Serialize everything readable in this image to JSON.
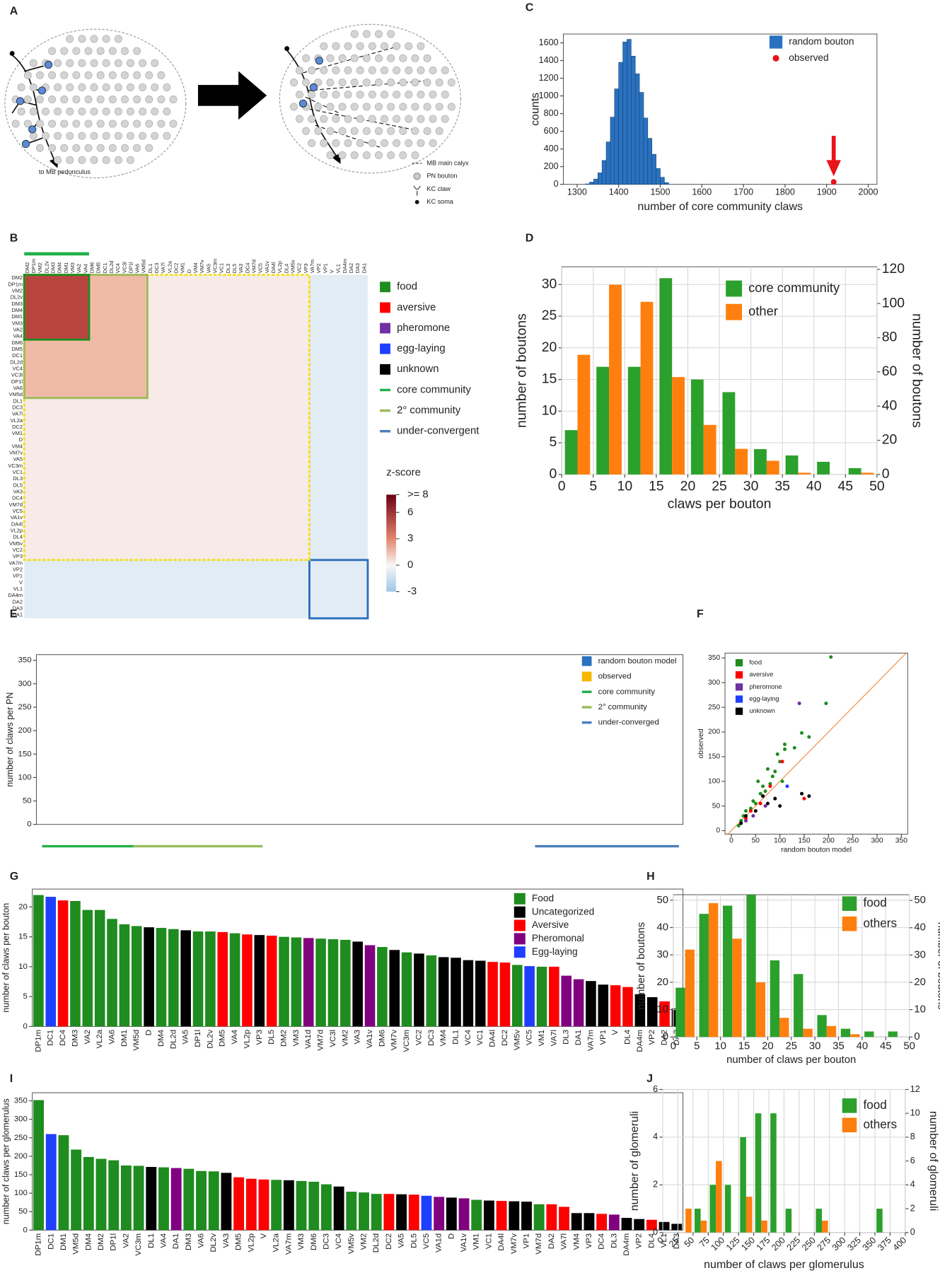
{
  "diagram": {
    "panel": "A",
    "note": "to MB pedunculus",
    "legend": [
      "MB main calyx",
      "PN bouton",
      "KC claw",
      "KC soma"
    ]
  },
  "chart_data": [
    {
      "panel": "B",
      "type": "heatmap",
      "labels": [
        "DM2",
        "DP1m",
        "VM2",
        "DL2v",
        "DM3",
        "DM4",
        "DM1",
        "VM3",
        "VA2",
        "VA4",
        "DM6",
        "DM5",
        "DC1",
        "DL2d",
        "VC4",
        "VC3l",
        "DP1l",
        "VA6",
        "VM5d",
        "DL1",
        "DC3",
        "VA7l",
        "VL2a",
        "DC2",
        "VM1",
        "D",
        "VM4",
        "VM7v",
        "VA5",
        "VC3m",
        "VC1",
        "DL3",
        "DL5",
        "VA3",
        "DC4",
        "VM7d",
        "VC5",
        "VA1v",
        "DA4l",
        "VL2p",
        "DL4",
        "VM5v",
        "VC2",
        "VP3",
        "VA7m",
        "VP2",
        "VP1",
        "V",
        "VL1",
        "DA4m",
        "DA2",
        "DA3",
        "DA1"
      ],
      "legend": [
        {
          "name": "food",
          "color": "#1e8c1e"
        },
        {
          "name": "aversive",
          "color": "#ff0000"
        },
        {
          "name": "pheromone",
          "color": "#7030a0"
        },
        {
          "name": "egg-laying",
          "color": "#1f3fff"
        },
        {
          "name": "unknown",
          "color": "#000000"
        },
        {
          "name": "core community",
          "color": "#22b04a",
          "marker": "line"
        },
        {
          "name": "2° community",
          "color": "#9bbb59",
          "marker": "line"
        },
        {
          "name": "under-convergent",
          "color": "#4a7ebb",
          "marker": "line"
        }
      ],
      "colorbar": {
        "title": "z-score",
        "lim": [
          -3,
          8
        ],
        "ticks": [
          {
            "value": 8,
            "label": ">= 8"
          },
          6,
          3,
          0,
          -3
        ]
      }
    },
    {
      "panel": "C",
      "type": "histogram",
      "xlabel": "number of core community claws",
      "ylabel": "counts",
      "bins": [
        1320,
        1330,
        1340,
        1350,
        1360,
        1370,
        1380,
        1390,
        1400,
        1410,
        1420,
        1430,
        1440,
        1450,
        1460,
        1470,
        1480,
        1490,
        1500,
        1510,
        1520
      ],
      "series": [
        {
          "name": "random bouton",
          "color": "#2a72c0",
          "values": [
            5,
            25,
            60,
            130,
            270,
            480,
            760,
            1080,
            1380,
            1610,
            1640,
            1450,
            1250,
            1040,
            750,
            520,
            340,
            180,
            80,
            20
          ]
        },
        {
          "name": "observed",
          "color": "#e8141c",
          "x": [
            1917
          ],
          "values": [
            0
          ]
        }
      ],
      "xlim": [
        1267,
        2021
      ],
      "xticks": [
        1300,
        1400,
        1500,
        1600,
        1700,
        1800,
        1900,
        2000
      ],
      "ylim": [
        0,
        1700
      ],
      "yticks": [
        0,
        200,
        400,
        600,
        800,
        1000,
        1200,
        1400,
        1600
      ]
    },
    {
      "panel": "D",
      "type": "histogram",
      "xlabel": "claws per bouton",
      "ylabel": "number of boutons",
      "y2label": "number of boutons",
      "grid": true,
      "bins": [
        0,
        5,
        10,
        15,
        20,
        25,
        30,
        35,
        40,
        45,
        50
      ],
      "series": [
        {
          "name": "core community",
          "color": "#2ca02c",
          "values": [
            7,
            17,
            17,
            31,
            15,
            13,
            4,
            3,
            2,
            1
          ]
        },
        {
          "name": "other",
          "color": "#ff7f0e",
          "axis": "y2",
          "values": [
            70,
            111,
            101,
            57,
            29,
            15,
            8,
            1,
            0,
            1
          ]
        }
      ],
      "xlim": [
        0,
        50
      ],
      "xticks": [
        0,
        5,
        10,
        15,
        20,
        25,
        30,
        35,
        40,
        45,
        50
      ],
      "ylim": [
        0,
        32.8
      ],
      "yticks": [
        0,
        5,
        10,
        15,
        20,
        25,
        30
      ],
      "y2lim": [
        0,
        121.5
      ],
      "y2ticks": [
        0,
        20,
        40,
        60,
        80,
        100,
        120
      ]
    },
    {
      "panel": "E",
      "type": "bar",
      "ylabel": "number of claws per PN",
      "ylim": [
        0,
        362
      ],
      "yticks": [
        0,
        50,
        100,
        150,
        200,
        250,
        300,
        350
      ],
      "legend": [
        {
          "name": "random bouton model",
          "color": "#2a72c0"
        },
        {
          "name": "observed",
          "color": "#f5b800"
        },
        {
          "name": "core community",
          "color": "#22b04a",
          "marker": "line"
        },
        {
          "name": "2° community",
          "color": "#9bbb59",
          "marker": "line"
        },
        {
          "name": "under-converged",
          "color": "#4a7ebb",
          "marker": "line"
        }
      ]
    },
    {
      "panel": "F",
      "type": "scatter",
      "xlabel": "random bouton model",
      "ylabel": "observed",
      "xlim": [
        -13,
        363
      ],
      "ylim": [
        -7,
        360
      ],
      "xticks": [
        0,
        50,
        100,
        150,
        200,
        250,
        300,
        350
      ],
      "yticks": [
        0,
        50,
        100,
        150,
        200,
        250,
        300,
        350
      ],
      "series": [
        {
          "name": "food",
          "color": "#1e8c1e",
          "x": [
            205,
            195,
            145,
            160,
            110,
            110,
            130,
            95,
            100,
            75,
            90,
            80,
            70,
            60,
            45,
            50,
            30,
            25,
            40,
            20,
            15,
            55,
            85,
            105,
            65
          ],
          "values": [
            352,
            258,
            198,
            190,
            175,
            165,
            168,
            155,
            140,
            125,
            120,
            95,
            80,
            75,
            60,
            55,
            40,
            30,
            45,
            20,
            10,
            100,
            110,
            100,
            90
          ]
        },
        {
          "name": "aversive",
          "color": "#ff0000",
          "x": [
            105,
            150,
            80,
            40,
            60,
            30
          ],
          "values": [
            140,
            65,
            90,
            40,
            55,
            25
          ]
        },
        {
          "name": "pheromone",
          "color": "#7030a0",
          "x": [
            140,
            45,
            30,
            70
          ],
          "values": [
            258,
            30,
            20,
            50
          ]
        },
        {
          "name": "egg-laying",
          "color": "#1f3fff",
          "x": [
            115
          ],
          "values": [
            90
          ]
        },
        {
          "name": "unknown",
          "color": "#000000",
          "x": [
            145,
            160,
            90,
            75,
            50,
            30,
            20,
            100,
            65
          ],
          "values": [
            75,
            70,
            65,
            55,
            40,
            30,
            15,
            50,
            70
          ]
        }
      ]
    },
    {
      "panel": "G",
      "type": "bar",
      "ylabel": "number of claws per bouton",
      "ylim": [
        0,
        23
      ],
      "yticks": [
        0,
        5,
        10,
        15,
        20
      ],
      "categories": [
        "DP1m",
        "DC1",
        "DC4",
        "DM3",
        "VA2",
        "VL2a",
        "VA6",
        "DM1",
        "VM5d",
        "D",
        "DM4",
        "DL2d",
        "VA5",
        "DP1l",
        "DL2v",
        "DM5",
        "VA4",
        "VL2p",
        "VP3",
        "DL5",
        "DM2",
        "VM3",
        "VA1d",
        "VM7d",
        "VC3l",
        "VM2",
        "VA3",
        "VA1v",
        "DM6",
        "VM7v",
        "VC3m",
        "VC2",
        "DC3",
        "VM4",
        "DL1",
        "VC4",
        "VC1",
        "DA4l",
        "DC2",
        "VM5v",
        "VC5",
        "VM1",
        "VA7l",
        "DL3",
        "DA1",
        "VA7m",
        "VP1",
        "V",
        "DL4",
        "DA4m",
        "VP2",
        "DA2",
        "DA3"
      ],
      "values": [
        22,
        21.7,
        21.1,
        21,
        19.5,
        19.5,
        18,
        17.1,
        16.8,
        16.6,
        16.5,
        16.3,
        16.1,
        15.9,
        15.9,
        15.8,
        15.6,
        15.4,
        15.3,
        15.2,
        15,
        14.9,
        14.8,
        14.7,
        14.6,
        14.5,
        14.2,
        13.6,
        13.3,
        12.8,
        12.4,
        12.2,
        11.9,
        11.6,
        11.5,
        11.1,
        11,
        10.8,
        10.7,
        10.3,
        10.1,
        10,
        10,
        8.5,
        7.9,
        7.6,
        7,
        6.9,
        6.6,
        5.4,
        4.9,
        4.2,
        3
      ],
      "colors": [
        "#1e8c1e",
        "#1f3fff",
        "#ff0000",
        "#1e8c1e",
        "#1e8c1e",
        "#1e8c1e",
        "#1e8c1e",
        "#1e8c1e",
        "#1e8c1e",
        "#000000",
        "#1e8c1e",
        "#1e8c1e",
        "#000000",
        "#1e8c1e",
        "#1e8c1e",
        "#ff0000",
        "#1e8c1e",
        "#ff0000",
        "#000000",
        "#ff0000",
        "#1e8c1e",
        "#1e8c1e",
        "#800080",
        "#1e8c1e",
        "#1e8c1e",
        "#1e8c1e",
        "#000000",
        "#800080",
        "#1e8c1e",
        "#000000",
        "#1e8c1e",
        "#000000",
        "#1e8c1e",
        "#000000",
        "#000000",
        "#000000",
        "#000000",
        "#ff0000",
        "#ff0000",
        "#1e8c1e",
        "#1f3fff",
        "#1e8c1e",
        "#ff0000",
        "#800080",
        "#800080",
        "#000000",
        "#000000",
        "#ff0000",
        "#ff0000",
        "#000000",
        "#000000",
        "#ff0000",
        "#000000"
      ],
      "legend": [
        {
          "name": "Food",
          "color": "#1e8c1e"
        },
        {
          "name": "Uncategorized",
          "color": "#000000"
        },
        {
          "name": "Aversive",
          "color": "#ff0000"
        },
        {
          "name": "Pheromonal",
          "color": "#800080"
        },
        {
          "name": "Egg-laying",
          "color": "#1f3fff"
        }
      ]
    },
    {
      "panel": "H",
      "type": "histogram",
      "xlabel": "number of claws per bouton",
      "ylabel": "number of boutons",
      "y2label": "number of boutons",
      "grid": true,
      "bins": [
        0,
        5,
        10,
        15,
        20,
        25,
        30,
        35,
        40,
        45,
        50
      ],
      "series": [
        {
          "name": "food",
          "color": "#2ca02c",
          "values": [
            18,
            45,
            48,
            52,
            28,
            23,
            8,
            3,
            2,
            2
          ]
        },
        {
          "name": "others",
          "color": "#ff7f0e",
          "axis": "y2",
          "values": [
            32,
            49,
            36,
            20,
            7,
            3,
            4,
            1,
            0,
            0
          ]
        }
      ],
      "xlim": [
        0,
        50
      ],
      "xticks": [
        0,
        5,
        10,
        15,
        20,
        25,
        30,
        35,
        40,
        45,
        50
      ],
      "ylim": [
        0,
        52
      ],
      "yticks": [
        0,
        10,
        20,
        30,
        40,
        50
      ],
      "y2lim": [
        0,
        52.1
      ],
      "y2ticks": [
        0,
        10,
        20,
        30,
        40,
        50
      ]
    },
    {
      "panel": "I",
      "type": "bar",
      "ylabel": "number of claws per glomerulus",
      "ylim": [
        0,
        372
      ],
      "yticks": [
        0,
        50,
        100,
        150,
        200,
        250,
        300,
        350
      ],
      "categories": [
        "DP1m",
        "DC1",
        "DM1",
        "VM5d",
        "DM4",
        "DM2",
        "DP1l",
        "VA2",
        "VC3m",
        "DL1",
        "VA4",
        "DA1",
        "DM3",
        "VA6",
        "DL2v",
        "VA3",
        "DM5",
        "VL2p",
        "V",
        "VL2a",
        "VA7m",
        "VM3",
        "DM6",
        "DC3",
        "VC4",
        "VM5v",
        "VM2",
        "DL2d",
        "DC2",
        "VA5",
        "DL5",
        "VC5",
        "VA1d",
        "D",
        "VA1v",
        "VM1",
        "VC1",
        "DA4l",
        "VM7v",
        "VP1",
        "VM7d",
        "DA2",
        "VA7l",
        "VM4",
        "VP3",
        "DC4",
        "DL3",
        "DA4m",
        "VP2",
        "DL4",
        "VL1",
        "DA3"
      ],
      "values": [
        352,
        260,
        257,
        218,
        198,
        193,
        189,
        175,
        174,
        171,
        170,
        168,
        166,
        160,
        159,
        155,
        143,
        139,
        137,
        136,
        135,
        133,
        131,
        124,
        118,
        104,
        102,
        98,
        98,
        97,
        96,
        93,
        90,
        88,
        86,
        82,
        80,
        79,
        78,
        77,
        70,
        70,
        63,
        46,
        46,
        44,
        42,
        33,
        30,
        28,
        22,
        17
      ],
      "colors": [
        "#1e8c1e",
        "#1f3fff",
        "#1e8c1e",
        "#1e8c1e",
        "#1e8c1e",
        "#1e8c1e",
        "#1e8c1e",
        "#1e8c1e",
        "#1e8c1e",
        "#000000",
        "#1e8c1e",
        "#800080",
        "#1e8c1e",
        "#1e8c1e",
        "#1e8c1e",
        "#000000",
        "#ff0000",
        "#ff0000",
        "#ff0000",
        "#1e8c1e",
        "#000000",
        "#1e8c1e",
        "#1e8c1e",
        "#1e8c1e",
        "#000000",
        "#1e8c1e",
        "#1e8c1e",
        "#1e8c1e",
        "#ff0000",
        "#000000",
        "#ff0000",
        "#1f3fff",
        "#800080",
        "#000000",
        "#800080",
        "#1e8c1e",
        "#000000",
        "#ff0000",
        "#000000",
        "#000000",
        "#1e8c1e",
        "#ff0000",
        "#ff0000",
        "#000000",
        "#000000",
        "#ff0000",
        "#800080",
        "#000000",
        "#000000",
        "#ff0000",
        "#000000",
        "#000000"
      ]
    },
    {
      "panel": "J",
      "type": "histogram",
      "xlabel": "number of claws per glomerulus",
      "ylabel": "number of glomeruli",
      "y2label": "number of glomeruli",
      "grid": true,
      "xtick_rotation": -45,
      "bins": [
        0,
        25,
        50,
        75,
        100,
        125,
        150,
        175,
        200,
        225,
        250,
        275,
        300,
        325,
        350,
        375,
        400
      ],
      "series": [
        {
          "name": "food",
          "color": "#2ca02c",
          "values": [
            0,
            0,
            1,
            2,
            2,
            4,
            5,
            5,
            1,
            0,
            1,
            0,
            0,
            0,
            1,
            0
          ]
        },
        {
          "name": "others",
          "color": "#ff7f0e",
          "axis": "y2",
          "values": [
            0,
            2,
            1,
            6,
            0,
            3,
            1,
            0,
            0,
            0,
            1,
            0,
            0,
            0,
            0,
            0
          ]
        }
      ],
      "xlim": [
        0,
        400
      ],
      "xticks": [
        0,
        25,
        50,
        75,
        100,
        125,
        150,
        175,
        200,
        225,
        250,
        275,
        300,
        325,
        350,
        375,
        400
      ],
      "ylim": [
        0,
        6
      ],
      "yticks": [
        0,
        2,
        4,
        6
      ],
      "y2lim": [
        0,
        12
      ],
      "y2ticks": [
        0,
        2,
        4,
        6,
        8,
        10,
        12
      ]
    }
  ]
}
